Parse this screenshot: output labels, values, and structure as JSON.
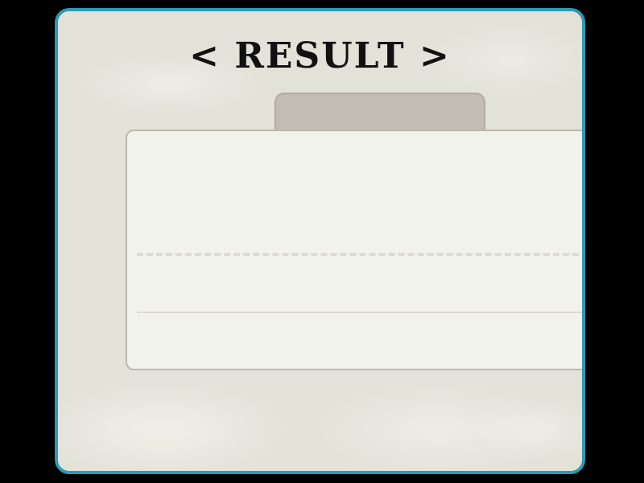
{
  "result_screen": {
    "title": "< RESULT >",
    "tab_label": "",
    "panel": {
      "upper_text": "",
      "middle_text": "",
      "lower_text": ""
    }
  },
  "colors": {
    "background": "#000000",
    "frame_border": "#2a9bb4",
    "frame_fill": "#e3e2d8",
    "tab_fill": "#c3bcb5",
    "panel_fill": "#f2f2ec",
    "title_text": "#111111"
  }
}
